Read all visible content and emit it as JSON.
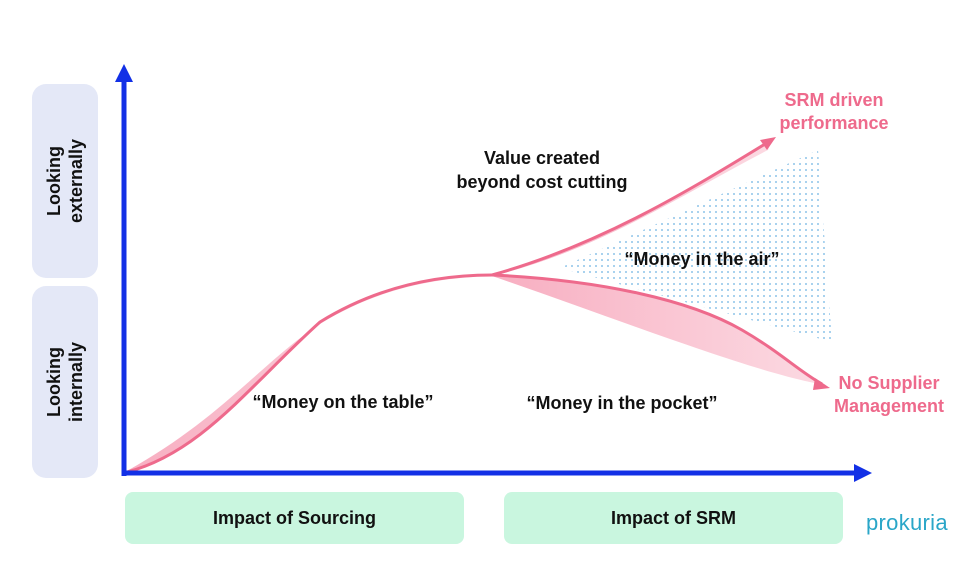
{
  "y_labels": {
    "upper": "Looking\nexternally",
    "lower": "Looking\ninternally"
  },
  "x_labels": {
    "left": "Impact of Sourcing",
    "right": "Impact of SRM"
  },
  "annotations": {
    "value_created_line1": "Value created",
    "value_created_line2": "beyond cost cutting",
    "money_in_air": "“Money in the air”",
    "money_on_table": "“Money on the table”",
    "money_in_pocket": "“Money in the pocket”"
  },
  "end_labels": {
    "srm_line1": "SRM driven",
    "srm_line2": "performance",
    "nsm_line1": "No Supplier",
    "nsm_line2": "Management"
  },
  "brand": "prokuria",
  "colors": {
    "axis": "#1230e6",
    "curve": "#ee6a8c",
    "band": "#f8b9c9",
    "dots": "#5aa8df",
    "end_label": "#ee6a8c"
  }
}
